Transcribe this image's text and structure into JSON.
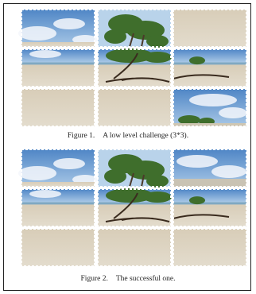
{
  "figures": [
    {
      "label": "Figure 1.",
      "caption": "A low level challenge (3*3)."
    },
    {
      "label": "Figure 2.",
      "caption": "The successful one."
    }
  ]
}
